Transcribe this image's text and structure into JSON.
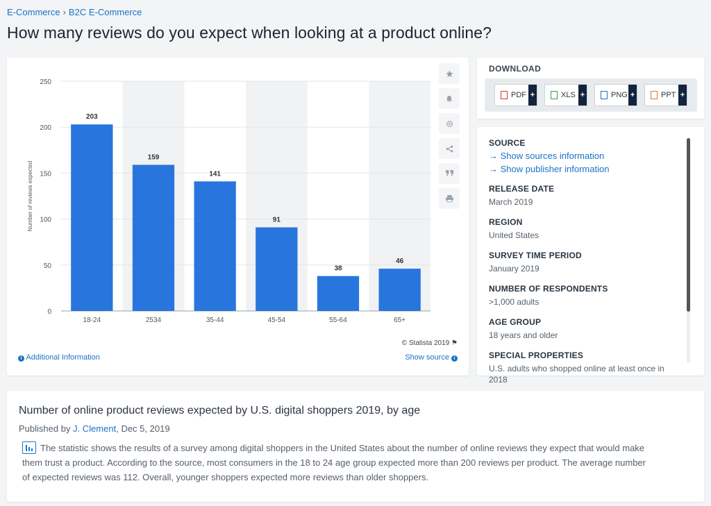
{
  "breadcrumb": {
    "items": [
      "E-Commerce",
      "B2C E-Commerce"
    ],
    "separator": "›"
  },
  "page_title": "How many reviews do you expect when looking at a product online?",
  "chart_card": {
    "additional_info": "Additional Information",
    "show_source": "Show source",
    "copyright": "© Statista 2019",
    "tools": [
      "star-icon",
      "bell-icon",
      "gear-icon",
      "share-icon",
      "quote-icon",
      "print-icon"
    ]
  },
  "chart_data": {
    "type": "bar",
    "categories": [
      "18-24",
      "2534",
      "35-44",
      "45-54",
      "55-64",
      "65+"
    ],
    "values": [
      203,
      159,
      141,
      91,
      38,
      46
    ],
    "ylabel": "Number of reviews expected",
    "xlabel": "",
    "ylim": [
      0,
      250
    ],
    "yticks": [
      0,
      50,
      100,
      150,
      200,
      250
    ],
    "bar_color": "#2876dd",
    "alt_band_color": "#f1f2f4",
    "grid": true
  },
  "download": {
    "title": "DOWNLOAD",
    "buttons": [
      {
        "label": "PDF",
        "color": "#d23a2a"
      },
      {
        "label": "XLS",
        "color": "#3f9a3a"
      },
      {
        "label": "PNG",
        "color": "#2f6fb8"
      },
      {
        "label": "PPT",
        "color": "#e0792a"
      }
    ],
    "plus": "+"
  },
  "meta": {
    "source_heading": "SOURCE",
    "links": [
      "Show sources information",
      "Show publisher information"
    ],
    "arrow": "→",
    "fields": [
      {
        "label": "RELEASE DATE",
        "value": "March 2019"
      },
      {
        "label": "REGION",
        "value": "United States"
      },
      {
        "label": "SURVEY TIME PERIOD",
        "value": "January 2019"
      },
      {
        "label": "NUMBER OF RESPONDENTS",
        "value": ">1,000 adults"
      },
      {
        "label": "AGE GROUP",
        "value": "18 years and older"
      },
      {
        "label": "SPECIAL PROPERTIES",
        "value": "U.S. adults who shopped online at least once in 2018"
      }
    ]
  },
  "description": {
    "title": "Number of online product reviews expected by U.S. digital shoppers 2019, by age",
    "published_prefix": "Published by",
    "author": "J. Clement",
    "date_suffix": ", Dec 5, 2019",
    "body": "The statistic shows the results of a survey among digital shoppers in the United States about the number of online reviews they expect that would make them trust a product. According to the source, most consumers in the 18 to 24 age group expected more than 200 reviews per product. The average number of expected reviews was 112. Overall, younger shoppers expected more reviews than older shoppers."
  }
}
